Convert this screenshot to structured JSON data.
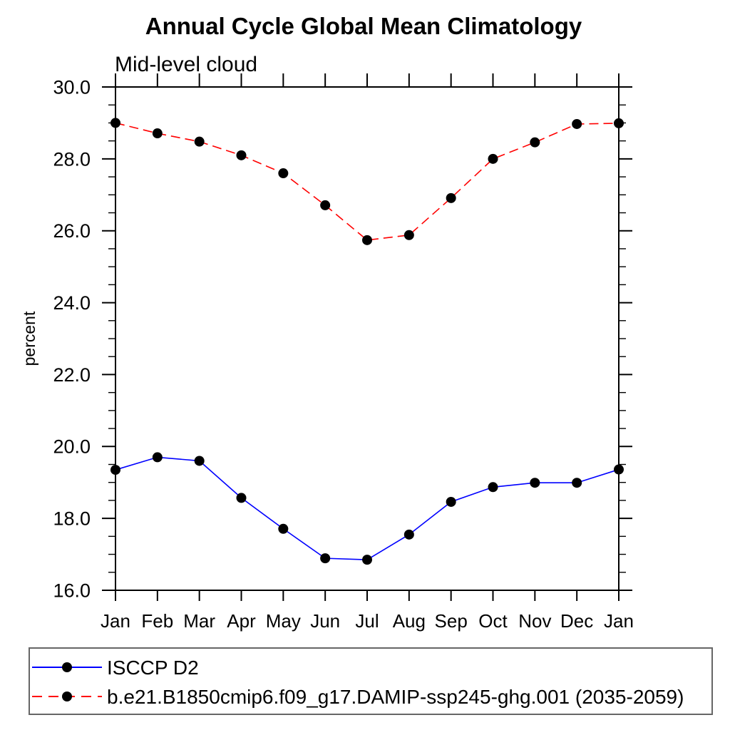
{
  "chart_data": {
    "type": "line",
    "title": "Annual Cycle Global Mean Climatology",
    "subtitle": "Mid-level cloud",
    "xlabel": "",
    "ylabel": "percent",
    "categories": [
      "Jan",
      "Feb",
      "Mar",
      "Apr",
      "May",
      "Jun",
      "Jul",
      "Aug",
      "Sep",
      "Oct",
      "Nov",
      "Dec",
      "Jan"
    ],
    "ylim": [
      16.0,
      30.0
    ],
    "ytick_major_interval": 2.0,
    "ytick_minor_interval": 0.5,
    "ytick_labels": [
      "16.0",
      "18.0",
      "20.0",
      "22.0",
      "24.0",
      "26.0",
      "28.0",
      "30.0"
    ],
    "grid": false,
    "axis_color": "#000000",
    "marker": {
      "shape": "filled-circle",
      "color": "#000000",
      "radius": 7
    },
    "series": [
      {
        "name": "ISCCP D2",
        "color": "#0000ff",
        "line_style": "solid",
        "values": [
          19.35,
          19.7,
          19.6,
          18.57,
          17.71,
          16.89,
          16.85,
          17.55,
          18.46,
          18.87,
          18.99,
          18.99,
          19.36
        ]
      },
      {
        "name": "b.e21.B1850cmip6.f09_g17.DAMIP-ssp245-ghg.001 (2035-2059)",
        "color": "#ff0000",
        "line_style": "dashed",
        "values": [
          29.0,
          28.71,
          28.48,
          28.1,
          27.6,
          26.71,
          25.74,
          25.88,
          26.91,
          28.0,
          28.46,
          28.97,
          28.99
        ]
      }
    ],
    "legend": {
      "position": "bottom-left",
      "border_color": "#666666",
      "entries": [
        "ISCCP D2",
        "b.e21.B1850cmip6.f09_g17.DAMIP-ssp245-ghg.001 (2035-2059)"
      ]
    }
  }
}
